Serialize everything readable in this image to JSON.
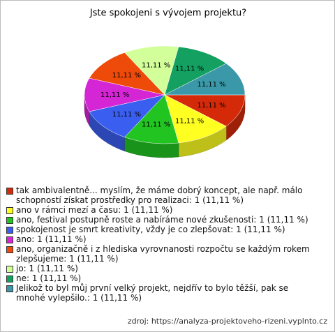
{
  "chart_data": {
    "type": "pie",
    "title": "Jste spokojeni s vývojem projektu?",
    "categories": [
      "tak ambivalentně... myslím, že máme dobrý koncept, ale např. málo schopností získat prostředky pro realizaci: 1 (11,11 %)",
      "ano v rámci mezí a času: 1 (11,11 %)",
      "ano, festival postupně roste a nabíráme nové zkušenosti: 1 (11,11 %)",
      "spokojenost je smrt kreativity, vždy je co zlepšovat: 1 (11,11 %)",
      "ano: 1 (11,11 %)",
      "ano, organizačně i z hlediska vyrovnanosti rozpočtu se každým rokem zlepšujeme: 1 (11,11 %)",
      "jo: 1 (11,11 %)",
      "ne: 1 (11,11 %)",
      "Jelikož to byl můj první velký projekt, nejdřív to bylo těžší, pak se mnohé vylepšilo.: 1 (11,11 %)"
    ],
    "values": [
      11.11,
      11.11,
      11.11,
      11.11,
      11.11,
      11.11,
      11.11,
      11.11,
      11.11
    ],
    "value_labels": [
      "11,11 %",
      "11,11 %",
      "11,11 %",
      "11,11 %",
      "11,11 %",
      "11,11 %",
      "11,11 %",
      "11,11 %",
      "11,11 %"
    ],
    "colors": [
      "#d42a0a",
      "#ffff22",
      "#22c422",
      "#3a5ff0",
      "#d426d4",
      "#ee4a0a",
      "#d2ff99",
      "#14a060",
      "#3a98a8"
    ],
    "source": "zdroj: https://analyza-projektoveho-rizeni.vyplnto.cz"
  }
}
